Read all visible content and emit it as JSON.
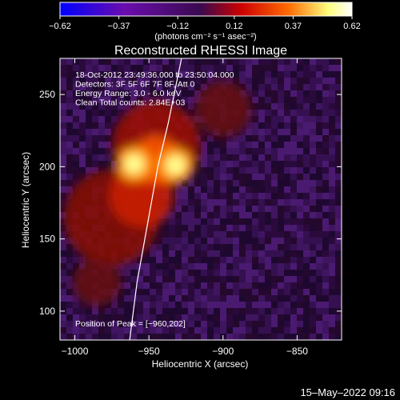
{
  "chart_data": {
    "type": "heatmap",
    "title": "Reconstructed RHESSI Image",
    "xlabel": "Heliocentric X (arcsec)",
    "ylabel": "Heliocentric Y (arcsec)",
    "xlim": [
      -1010,
      -820
    ],
    "ylim": [
      80,
      275
    ],
    "x_ticks": [
      -1000,
      -950,
      -900,
      -850
    ],
    "x_tick_labels": [
      "−1000",
      "−950",
      "−900",
      "−850"
    ],
    "y_ticks": [
      100,
      150,
      200,
      250
    ],
    "y_tick_labels": [
      "100",
      "150",
      "200",
      "250"
    ],
    "colorbar": {
      "range": [
        -0.62,
        0.62
      ],
      "ticks": [
        -0.62,
        -0.37,
        -0.12,
        0.12,
        0.37,
        0.62
      ],
      "tick_labels": [
        "−0.62",
        "−0.37",
        "−0.12",
        "0.12",
        "0.37",
        "0.62"
      ],
      "stops": [
        "#0000ff",
        "#6a0dad",
        "#3a0a50",
        "#cc0000",
        "#ff6a00",
        "#ffff80",
        "#ffffff"
      ]
    },
    "units_label": "(photons cm⁻² s⁻¹ asec⁻²)",
    "info_lines": [
      "18-Oct-2012 23:49:36.000 to 23:50:04.000",
      "Detectors: 3F 5F 6F 7F 8F, Att 0",
      "Energy Range: 3.0 - 6.0 keV",
      "Clean    Total counts: 2.84E+03"
    ],
    "peak": {
      "x": -960,
      "y": 202,
      "label": "Position of Peak = [−960,202]"
    },
    "sources": [
      {
        "x": -960,
        "y": 202,
        "intensity": 0.62
      },
      {
        "x": -932,
        "y": 201,
        "intensity": 0.58
      }
    ],
    "limb_curve": [
      [
        -963,
        80
      ],
      [
        -958,
        120
      ],
      [
        -951,
        160
      ],
      [
        -944,
        200
      ],
      [
        -937,
        230
      ],
      [
        -928,
        275
      ]
    ]
  },
  "footer_timestamp": "15–May–2022 09:16"
}
